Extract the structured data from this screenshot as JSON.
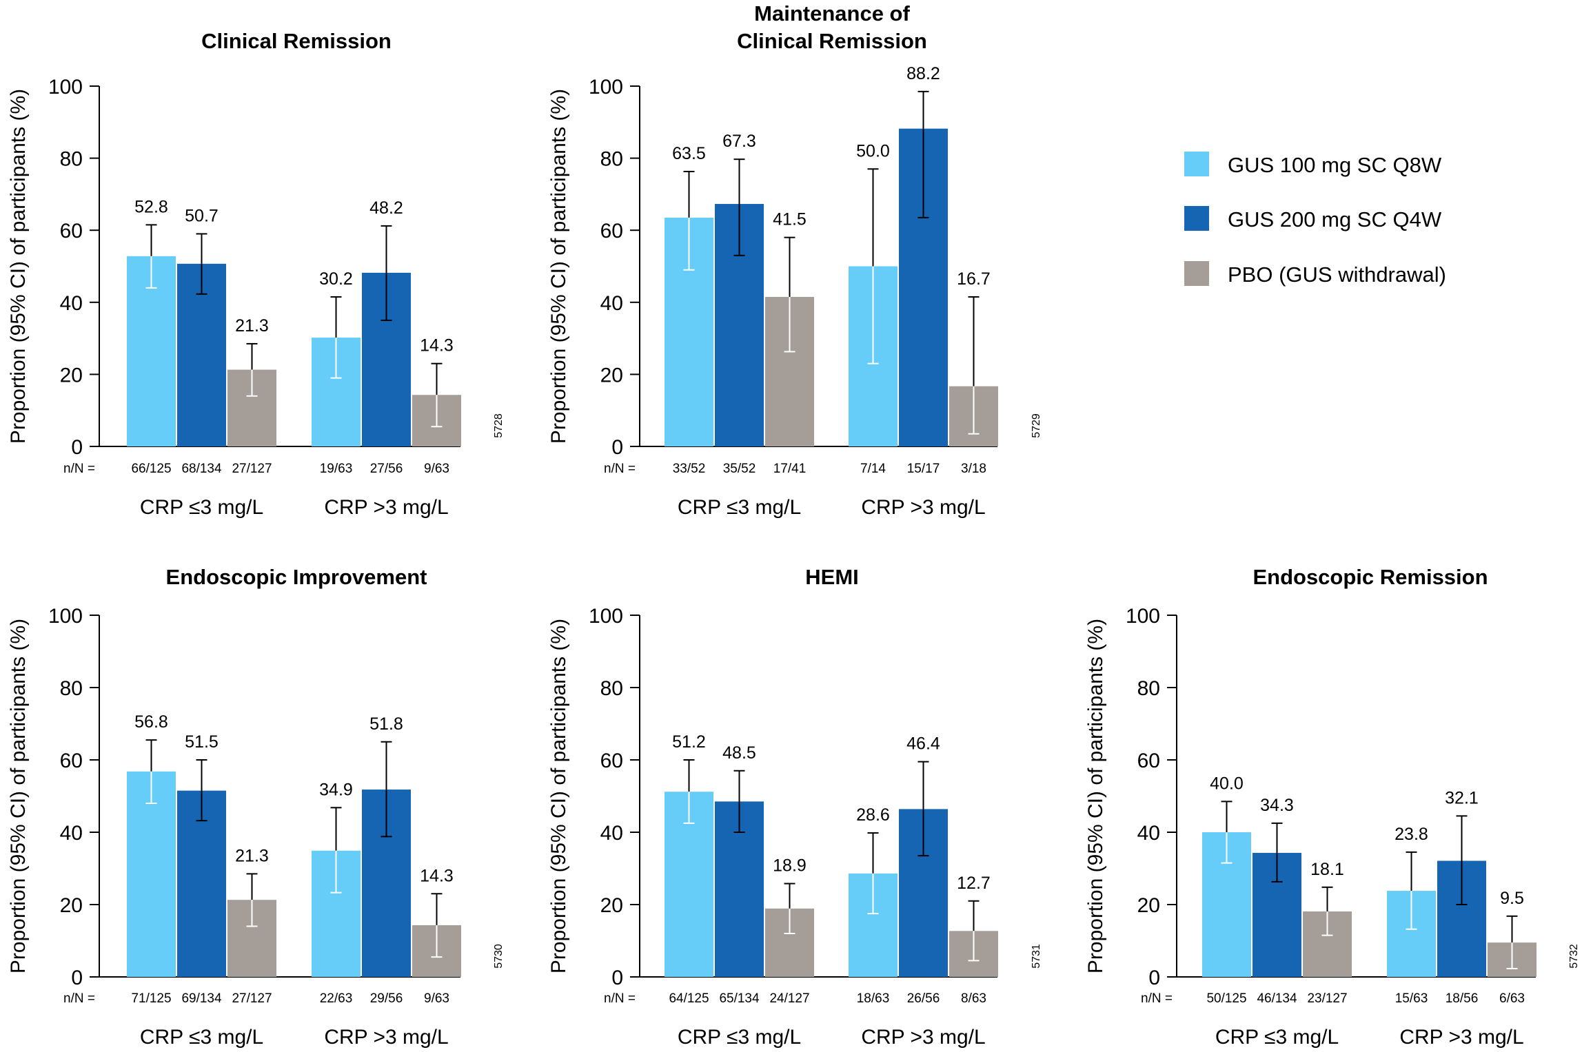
{
  "legend": {
    "items": [
      {
        "label": "GUS 100 mg SC Q8W",
        "color": "#66cdf9"
      },
      {
        "label": "GUS 200 mg SC Q4W",
        "color": "#1565b3"
      },
      {
        "label": "PBO (GUS withdrawal)",
        "color": "#a59d98"
      }
    ]
  },
  "chart_data": [
    {
      "type": "bar",
      "title": "Clinical Remission",
      "ylabel": "Proportion (95% CI) of participants (%)",
      "ylim": [
        0,
        100
      ],
      "yticks": [
        0,
        20,
        40,
        60,
        80,
        100
      ],
      "nn_prefix": "n/N =",
      "figure_code": "5728",
      "categories": [
        "CRP ≤3 mg/L",
        "CRP >3 mg/L"
      ],
      "series": [
        {
          "name": "GUS 100 mg SC Q8W",
          "values": [
            52.8,
            30.2
          ],
          "labels": [
            "52.8",
            "30.2"
          ],
          "ci_low": [
            44,
            19
          ],
          "ci_high": [
            61.5,
            41.5
          ],
          "nn": [
            "66/125",
            "19/63"
          ]
        },
        {
          "name": "GUS 200 mg SC Q4W",
          "values": [
            50.7,
            48.2
          ],
          "labels": [
            "50.7",
            "48.2"
          ],
          "ci_low": [
            42.3,
            35
          ],
          "ci_high": [
            59,
            61.2
          ],
          "nn": [
            "68/134",
            "27/56"
          ]
        },
        {
          "name": "PBO (GUS withdrawal)",
          "values": [
            21.3,
            14.3
          ],
          "labels": [
            "21.3",
            "14.3"
          ],
          "ci_low": [
            14,
            5.5
          ],
          "ci_high": [
            28.5,
            23
          ],
          "nn": [
            "27/127",
            "9/63"
          ]
        }
      ]
    },
    {
      "type": "bar",
      "title": "Maintenance of\nClinical Remission",
      "ylabel": "Proportion (95% CI) of participants (%)",
      "ylim": [
        0,
        100
      ],
      "yticks": [
        0,
        20,
        40,
        60,
        80,
        100
      ],
      "nn_prefix": "n/N =",
      "figure_code": "5729",
      "categories": [
        "CRP ≤3 mg/L",
        "CRP >3 mg/L"
      ],
      "series": [
        {
          "name": "GUS 100 mg SC Q8W",
          "values": [
            63.5,
            50.0
          ],
          "labels": [
            "63.5",
            "50.0"
          ],
          "ci_low": [
            49,
            23
          ],
          "ci_high": [
            76.3,
            77
          ],
          "nn": [
            "33/52",
            "7/14"
          ]
        },
        {
          "name": "GUS 200 mg SC Q4W",
          "values": [
            67.3,
            88.2
          ],
          "labels": [
            "67.3",
            "88.2"
          ],
          "ci_low": [
            53,
            63.5
          ],
          "ci_high": [
            79.7,
            98.5
          ],
          "nn": [
            "35/52",
            "15/17"
          ]
        },
        {
          "name": "PBO (GUS withdrawal)",
          "values": [
            41.5,
            16.7
          ],
          "labels": [
            "41.5",
            "16.7"
          ],
          "ci_low": [
            26.3,
            3.5
          ],
          "ci_high": [
            58,
            41.5
          ],
          "nn": [
            "17/41",
            "3/18"
          ]
        }
      ]
    },
    {
      "type": "bar",
      "title": "Endoscopic Improvement",
      "ylabel": "Proportion (95% CI) of participants (%)",
      "ylim": [
        0,
        100
      ],
      "yticks": [
        0,
        20,
        40,
        60,
        80,
        100
      ],
      "nn_prefix": "n/N =",
      "figure_code": "5730",
      "categories": [
        "CRP ≤3 mg/L",
        "CRP >3 mg/L"
      ],
      "series": [
        {
          "name": "GUS 100 mg SC Q8W",
          "values": [
            56.8,
            34.9
          ],
          "labels": [
            "56.8",
            "34.9"
          ],
          "ci_low": [
            48,
            23.3
          ],
          "ci_high": [
            65.5,
            46.8
          ],
          "nn": [
            "71/125",
            "22/63"
          ]
        },
        {
          "name": "GUS 200 mg SC Q4W",
          "values": [
            51.5,
            51.8
          ],
          "labels": [
            "51.5",
            "51.8"
          ],
          "ci_low": [
            43.2,
            38.8
          ],
          "ci_high": [
            60,
            65
          ],
          "nn": [
            "69/134",
            "29/56"
          ]
        },
        {
          "name": "PBO (GUS withdrawal)",
          "values": [
            21.3,
            14.3
          ],
          "labels": [
            "21.3",
            "14.3"
          ],
          "ci_low": [
            14,
            5.5
          ],
          "ci_high": [
            28.5,
            23
          ],
          "nn": [
            "27/127",
            "9/63"
          ]
        }
      ]
    },
    {
      "type": "bar",
      "title": "HEMI",
      "ylabel": "Proportion (95% CI) of participants (%)",
      "ylim": [
        0,
        100
      ],
      "yticks": [
        0,
        20,
        40,
        60,
        80,
        100
      ],
      "nn_prefix": "n/N =",
      "figure_code": "5731",
      "categories": [
        "CRP ≤3 mg/L",
        "CRP >3 mg/L"
      ],
      "series": [
        {
          "name": "GUS 100 mg SC Q8W",
          "values": [
            51.2,
            28.6
          ],
          "labels": [
            "51.2",
            "28.6"
          ],
          "ci_low": [
            42.5,
            17.5
          ],
          "ci_high": [
            60,
            39.8
          ],
          "nn": [
            "64/125",
            "18/63"
          ]
        },
        {
          "name": "GUS 200 mg SC Q4W",
          "values": [
            48.5,
            46.4
          ],
          "labels": [
            "48.5",
            "46.4"
          ],
          "ci_low": [
            40,
            33.5
          ],
          "ci_high": [
            57,
            59.5
          ],
          "nn": [
            "65/134",
            "26/56"
          ]
        },
        {
          "name": "PBO (GUS withdrawal)",
          "values": [
            18.9,
            12.7
          ],
          "labels": [
            "18.9",
            "12.7"
          ],
          "ci_low": [
            12,
            4.5
          ],
          "ci_high": [
            25.8,
            21
          ],
          "nn": [
            "24/127",
            "8/63"
          ]
        }
      ]
    },
    {
      "type": "bar",
      "title": "Endoscopic Remission",
      "ylabel": "Proportion (95% CI) of participants (%)",
      "ylim": [
        0,
        100
      ],
      "yticks": [
        0,
        20,
        40,
        60,
        80,
        100
      ],
      "nn_prefix": "n/N =",
      "figure_code": "5732",
      "categories": [
        "CRP ≤3 mg/L",
        "CRP >3 mg/L"
      ],
      "series": [
        {
          "name": "GUS 100 mg SC Q8W",
          "values": [
            40.0,
            23.8
          ],
          "labels": [
            "40.0",
            "23.8"
          ],
          "ci_low": [
            31.5,
            13.2
          ],
          "ci_high": [
            48.5,
            34.5
          ],
          "nn": [
            "50/125",
            "15/63"
          ]
        },
        {
          "name": "GUS 200 mg SC Q4W",
          "values": [
            34.3,
            32.1
          ],
          "labels": [
            "34.3",
            "32.1"
          ],
          "ci_low": [
            26.3,
            20
          ],
          "ci_high": [
            42.5,
            44.5
          ],
          "nn": [
            "46/134",
            "18/56"
          ]
        },
        {
          "name": "PBO (GUS withdrawal)",
          "values": [
            18.1,
            9.5
          ],
          "labels": [
            "18.1",
            "9.5"
          ],
          "ci_low": [
            11.5,
            2.3
          ],
          "ci_high": [
            24.8,
            16.8
          ],
          "nn": [
            "23/127",
            "6/63"
          ]
        }
      ]
    }
  ]
}
